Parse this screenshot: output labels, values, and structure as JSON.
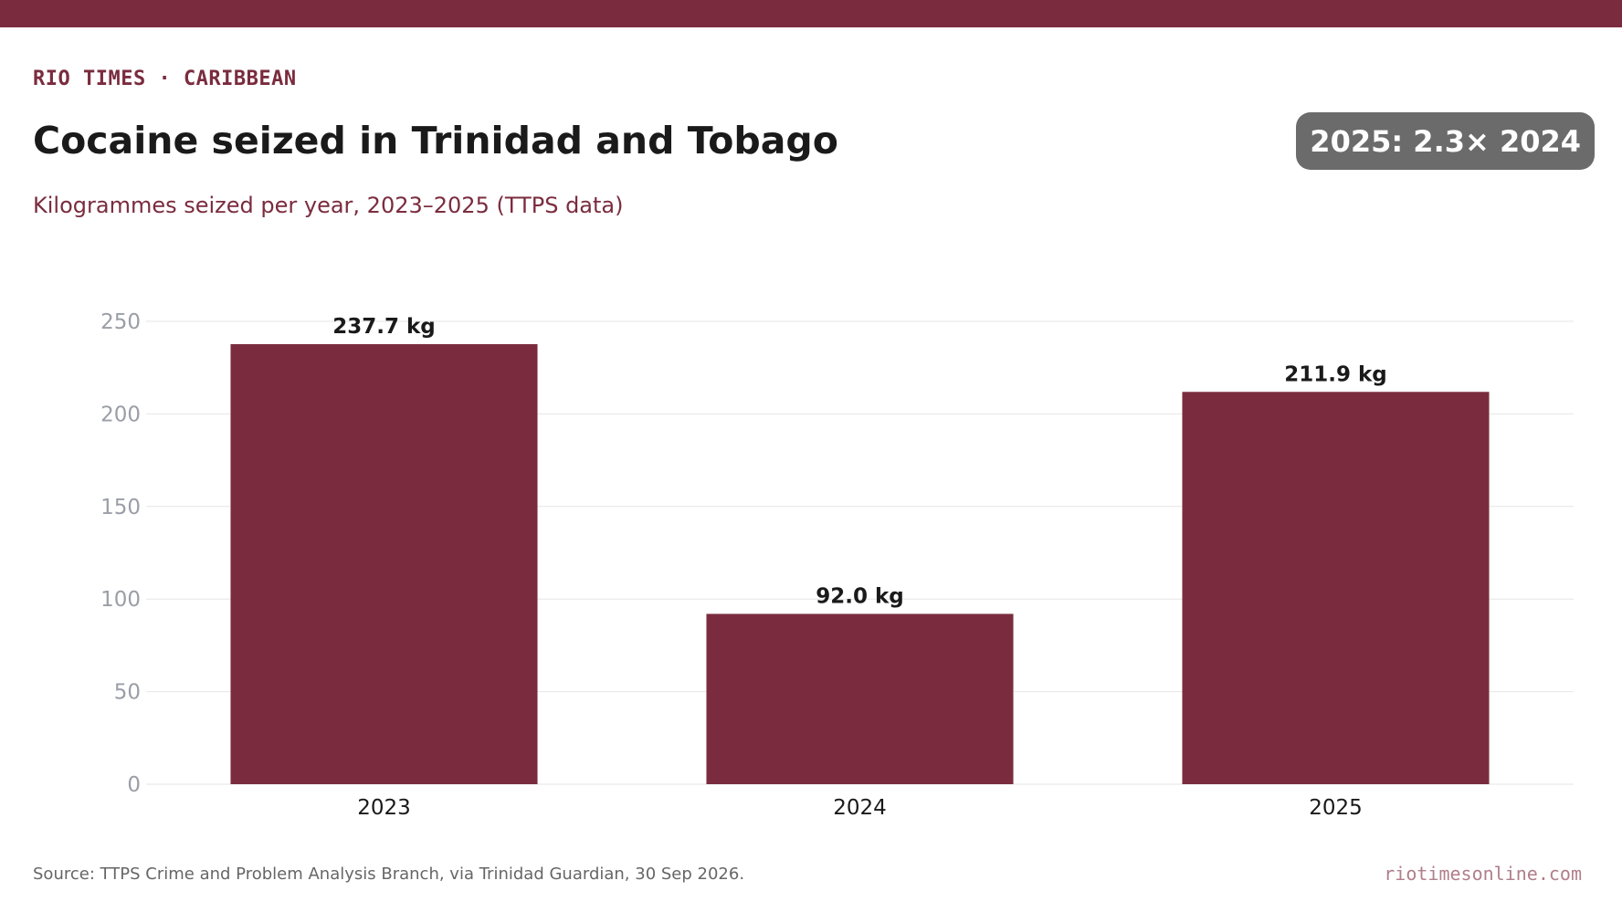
{
  "header": {
    "kicker": "RIO TIMES · CARIBBEAN",
    "title": "Cocaine seized in Trinidad and Tobago",
    "subtitle": "Kilogrammes seized per year, 2023–2025 (TTPS data)",
    "badge": "2025: 2.3× 2024"
  },
  "chart_data": {
    "type": "bar",
    "categories": [
      "2023",
      "2024",
      "2025"
    ],
    "values": [
      237.7,
      92.0,
      211.9
    ],
    "data_labels": [
      "237.7 kg",
      "92.0 kg",
      "211.9 kg"
    ],
    "ylim": [
      0,
      250
    ],
    "yticks": [
      0,
      50,
      100,
      150,
      200,
      250
    ],
    "grid": true,
    "bar_color": "#7a2c3e"
  },
  "footer": {
    "source": "Source: TTPS Crime and Problem Analysis Branch, via Trinidad Guardian, 30 Sep 2026.",
    "site": "riotimesonline.com"
  },
  "colors": {
    "accent": "#7a2c3e",
    "badge_bg": "#6b6b6b",
    "gridline": "#e6e6e6",
    "tick_label": "#9a9ea6"
  }
}
